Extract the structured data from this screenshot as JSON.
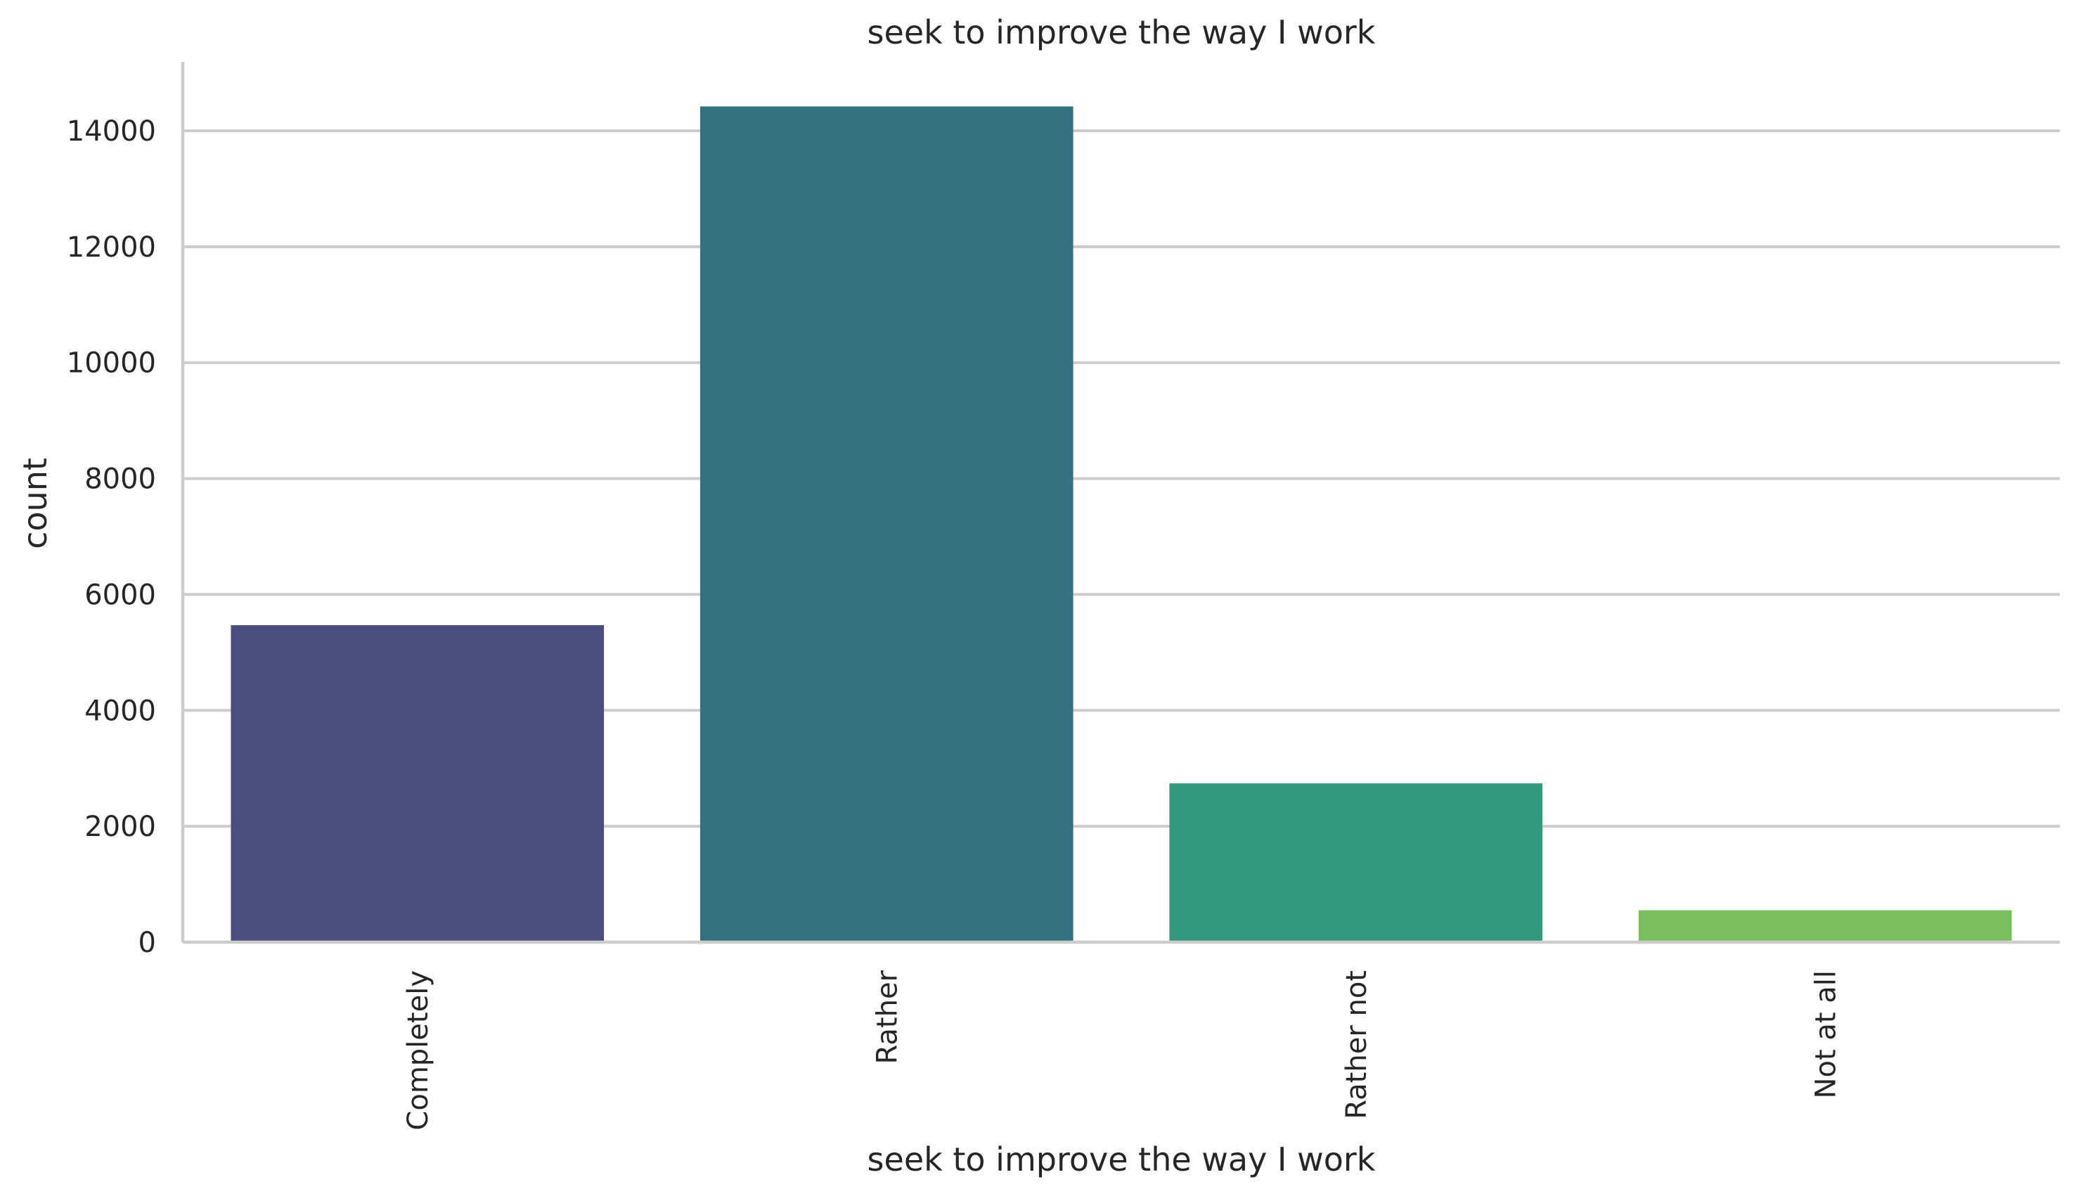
{
  "chart_data": {
    "type": "bar",
    "title": "seek to improve the way I work",
    "xlabel": "seek to improve the way I work",
    "ylabel": "count",
    "categories": [
      "Completely",
      "Rather",
      "Rather not",
      "Not at all"
    ],
    "values": [
      5470,
      14420,
      2740,
      550
    ],
    "colors": [
      "#4a4e7f",
      "#35727f",
      "#34987c",
      "#7bbf5d"
    ],
    "ylim": [
      0,
      15200
    ],
    "yticks": [
      0,
      2000,
      4000,
      6000,
      8000,
      10000,
      12000,
      14000
    ],
    "grid": "horizontal",
    "legend": "none"
  }
}
